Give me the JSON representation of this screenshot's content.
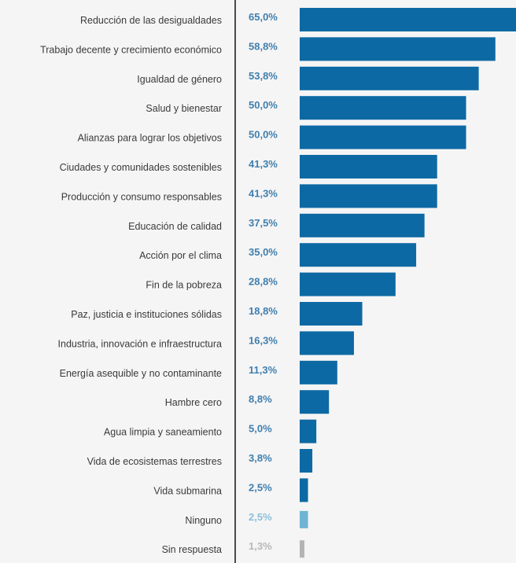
{
  "chart_data": {
    "type": "bar",
    "orientation": "horizontal",
    "categories": [
      "Reducción de las desigualdades",
      "Trabajo decente y crecimiento económico",
      "Igualdad de género",
      "Salud y bienestar",
      "Alianzas para lograr los objetivos",
      "Ciudades y comunidades sostenibles",
      "Producción y consumo responsables",
      "Educación de calidad",
      "Acción por el clima",
      "Fin de la pobreza",
      "Paz, justicia e instituciones sólidas",
      "Industria, innovación e infraestructura",
      "Energía asequible y no contaminante",
      "Hambre cero",
      "Agua limpia y saneamiento",
      "Vida de ecosistemas terrestres",
      "Vida submarina",
      "Ninguno",
      "Sin respuesta"
    ],
    "values": [
      65.0,
      58.8,
      53.8,
      50.0,
      50.0,
      41.3,
      41.3,
      37.5,
      35.0,
      28.8,
      18.8,
      16.3,
      11.3,
      8.8,
      5.0,
      3.8,
      2.5,
      2.5,
      1.3
    ],
    "value_labels": [
      "65,0%",
      "58,8%",
      "53,8%",
      "50,0%",
      "50,0%",
      "41,3%",
      "41,3%",
      "37,5%",
      "35,0%",
      "28,8%",
      "18,8%",
      "16,3%",
      "11,3%",
      "8,8%",
      "5,0%",
      "3,8%",
      "2,5%",
      "2,5%",
      "1,3%"
    ],
    "bar_colors": [
      "#0d69a3",
      "#0d69a3",
      "#0d69a3",
      "#0d69a3",
      "#0d69a3",
      "#0d69a3",
      "#0d69a3",
      "#0d69a3",
      "#0d69a3",
      "#0d69a3",
      "#0d69a3",
      "#0d69a3",
      "#0d69a3",
      "#0d69a3",
      "#0d69a3",
      "#0d69a3",
      "#0d69a3",
      "#6fb4d4",
      "#b4b4b4"
    ],
    "label_colors": [
      "#3f7fae",
      "#3f7fae",
      "#3f7fae",
      "#3f7fae",
      "#3f7fae",
      "#3f7fae",
      "#3f7fae",
      "#3f7fae",
      "#3f7fae",
      "#3f7fae",
      "#3f7fae",
      "#3f7fae",
      "#3f7fae",
      "#3f7fae",
      "#3f7fae",
      "#3f7fae",
      "#3f7fae",
      "#8cc0db",
      "#b8b8b8"
    ],
    "xlim": [
      0,
      65
    ],
    "grid": false,
    "legend": false
  }
}
